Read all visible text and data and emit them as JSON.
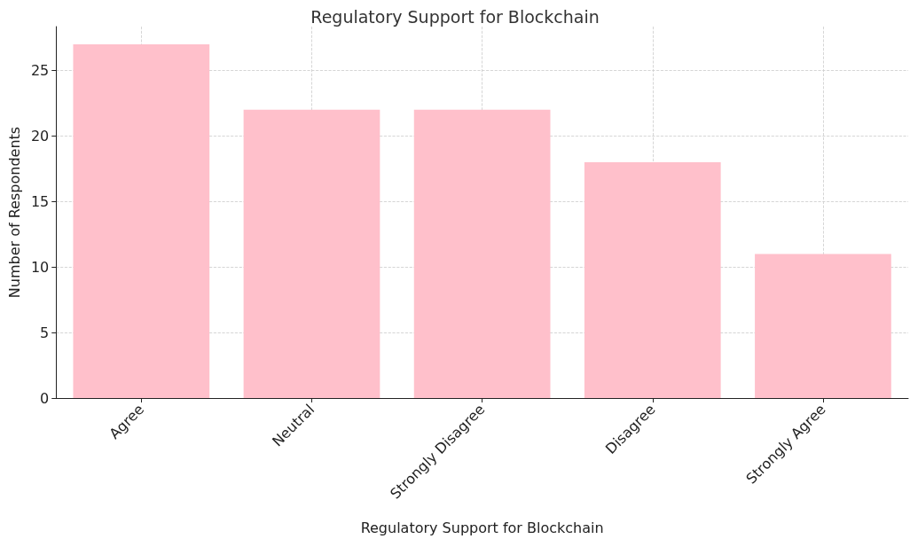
{
  "chart_data": {
    "type": "bar",
    "title": "Regulatory Support for Blockchain",
    "xlabel": "Regulatory Support for Blockchain",
    "ylabel": "Number of Respondents",
    "categories": [
      "Agree",
      "Neutral",
      "Strongly Disagree",
      "Disagree",
      "Strongly Agree"
    ],
    "values": [
      27,
      22,
      22,
      18,
      11
    ],
    "color": "#ffc0cb",
    "ylim": [
      0,
      28.35
    ],
    "yticks": [
      0,
      5,
      10,
      15,
      20,
      25
    ],
    "grid": true
  }
}
